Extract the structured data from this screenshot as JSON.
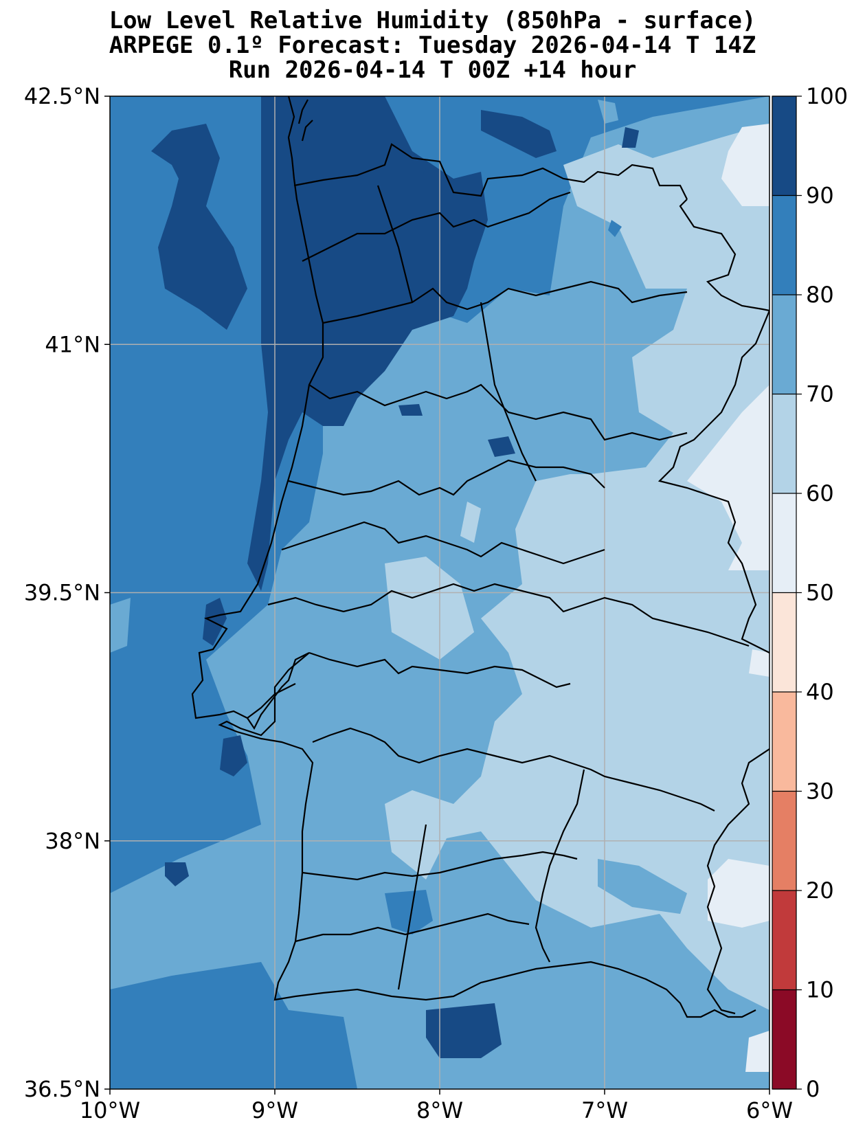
{
  "title": {
    "line1": "Low Level Relative Humidity (850hPa - surface)",
    "line2": "ARPEGE 0.1º Forecast: Tuesday 2026-04-14 T 14Z",
    "line3": "Run 2026-04-14 T 00Z +14 hour"
  },
  "map": {
    "lat_ticks": [
      "42.5°N",
      "41°N",
      "39.5°N",
      "38°N",
      "36.5°N"
    ],
    "lon_ticks": [
      "10°W",
      "9°W",
      "8°W",
      "7°W",
      "6°W"
    ],
    "extent": {
      "lon_min": -10,
      "lon_max": -6,
      "lat_min": 36.5,
      "lat_max": 42.5
    },
    "grid": true
  },
  "colorbar": {
    "ticks": [
      "100",
      "90",
      "80",
      "70",
      "60",
      "50",
      "40",
      "30",
      "20",
      "10",
      "0"
    ],
    "levels": [
      0,
      10,
      20,
      30,
      40,
      50,
      60,
      70,
      80,
      90,
      100
    ],
    "colors": [
      "#8b0a26",
      "#c13a3b",
      "#e57f64",
      "#f9b99d",
      "#fbe5d9",
      "#e6eef6",
      "#b3d3e7",
      "#6aaad3",
      "#337fbb",
      "#174a85"
    ]
  }
}
